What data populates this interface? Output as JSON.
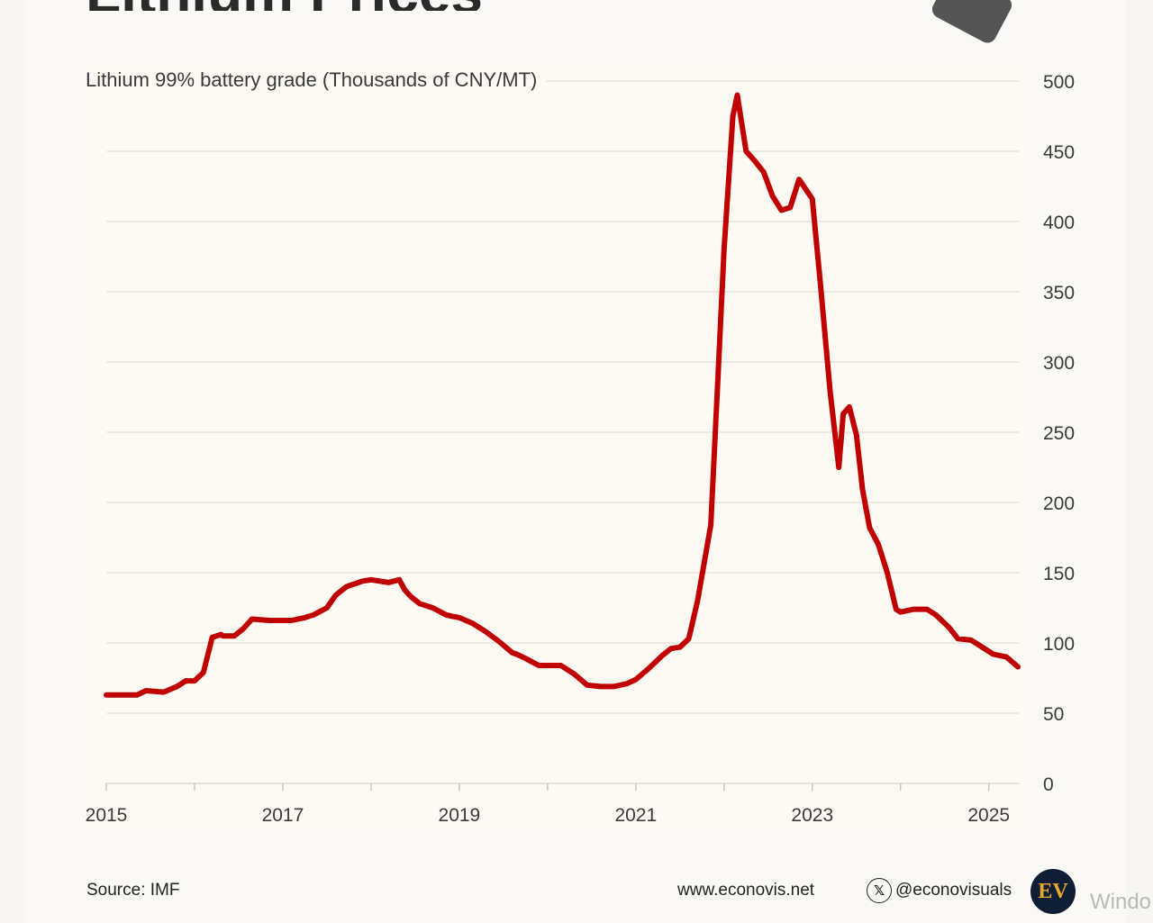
{
  "header": {
    "title_fragment": "Lithium Prices"
  },
  "footer": {
    "source": "Source: IMF",
    "website": "www.econovis.net",
    "handle": "@econovisuals",
    "logo_text": "EV",
    "watermark": "Windo"
  },
  "colors": {
    "line": "#c00000",
    "grid": "#e4e1d9",
    "text": "#3a3a3a"
  },
  "chart_data": {
    "type": "line",
    "title": "",
    "ylabel": "Lithium 99% battery grade (Thousands of CNY/MT)",
    "xlabel": "",
    "ylim": [
      0,
      500
    ],
    "xlim": [
      2015,
      2025.35
    ],
    "yticks": [
      0,
      50,
      100,
      150,
      200,
      250,
      300,
      350,
      400,
      450,
      500
    ],
    "xticks": [
      2015,
      2017,
      2019,
      2021,
      2023,
      2025
    ],
    "minor_xticks": [
      2016,
      2018,
      2020,
      2022,
      2024
    ],
    "grid": true,
    "y_axis_side": "right",
    "series": [
      {
        "name": "Lithium 99% battery grade",
        "x": [
          2015.0,
          2015.15,
          2015.35,
          2015.45,
          2015.65,
          2015.8,
          2015.9,
          2016.0,
          2016.1,
          2016.2,
          2016.3,
          2016.32,
          2016.45,
          2016.55,
          2016.65,
          2016.85,
          2017.0,
          2017.1,
          2017.25,
          2017.35,
          2017.5,
          2017.6,
          2017.72,
          2017.9,
          2018.0,
          2018.2,
          2018.32,
          2018.38,
          2018.45,
          2018.55,
          2018.7,
          2018.85,
          2018.92,
          2019.0,
          2019.15,
          2019.3,
          2019.45,
          2019.6,
          2019.65,
          2019.75,
          2019.9,
          2020.0,
          2020.15,
          2020.3,
          2020.45,
          2020.6,
          2020.75,
          2020.9,
          2021.0,
          2021.15,
          2021.3,
          2021.4,
          2021.5,
          2021.6,
          2021.7,
          2021.85,
          2021.92,
          2022.0,
          2022.1,
          2022.15,
          2022.25,
          2022.35,
          2022.45,
          2022.55,
          2022.65,
          2022.75,
          2022.85,
          2023.0,
          2023.1,
          2023.2,
          2023.3,
          2023.35,
          2023.42,
          2023.5,
          2023.57,
          2023.65,
          2023.75,
          2023.85,
          2023.95,
          2024.0,
          2024.15,
          2024.3,
          2024.4,
          2024.55,
          2024.65,
          2024.8,
          2024.95,
          2025.05,
          2025.2,
          2025.33
        ],
        "values": [
          63,
          63,
          63,
          66,
          65,
          69,
          73,
          73,
          79,
          104,
          106,
          105,
          105,
          110,
          117,
          116,
          116,
          116,
          118,
          120,
          125,
          134,
          140,
          144,
          145,
          143,
          145,
          138,
          133,
          128,
          125,
          120,
          119,
          118,
          114,
          108,
          101,
          93,
          92,
          89,
          84,
          84,
          84,
          78,
          70,
          69,
          69,
          71,
          74,
          82,
          91,
          96,
          97,
          103,
          130,
          184,
          275,
          380,
          475,
          490,
          450,
          443,
          435,
          418,
          408,
          410,
          430,
          416,
          350,
          280,
          225,
          263,
          268,
          248,
          209,
          182,
          170,
          150,
          124,
          122,
          124,
          124,
          120,
          111,
          103,
          102,
          96,
          92,
          90,
          83
        ]
      }
    ]
  }
}
